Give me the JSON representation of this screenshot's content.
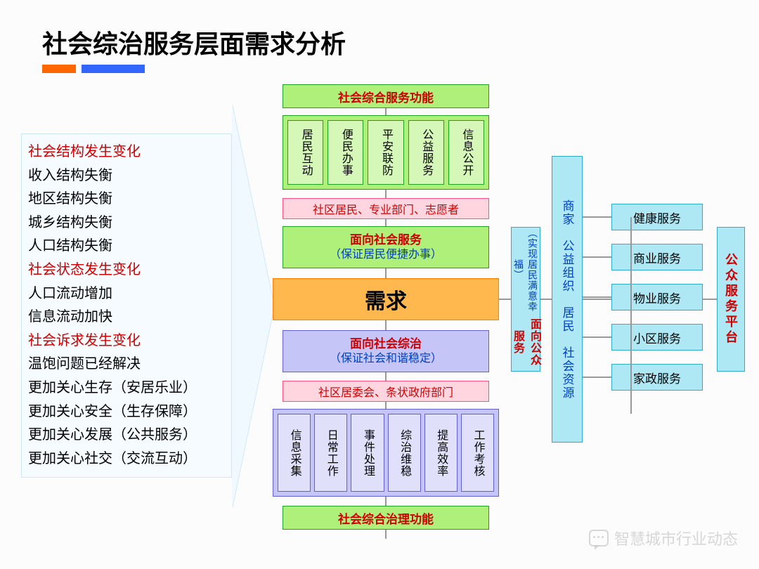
{
  "title": "社会综治服务层面需求分析",
  "left_list": [
    {
      "text": "社会结构发生变化",
      "cls": "red"
    },
    {
      "text": "收入结构失衡",
      "cls": "blk"
    },
    {
      "text": "地区结构失衡",
      "cls": "blk"
    },
    {
      "text": "城乡结构失衡",
      "cls": "blk"
    },
    {
      "text": "人口结构失衡",
      "cls": "blk"
    },
    {
      "text": "社会状态发生变化",
      "cls": "red"
    },
    {
      "text": "人口流动增加",
      "cls": "blk"
    },
    {
      "text": "信息流动加快",
      "cls": "blk"
    },
    {
      "text": "社会诉求发生变化",
      "cls": "red"
    },
    {
      "text": "温饱问题已经解决",
      "cls": "blk"
    },
    {
      "text": "更加关心生存（安居乐业）",
      "cls": "blk"
    },
    {
      "text": "更加关心安全（生存保障）",
      "cls": "blk"
    },
    {
      "text": "更加关心发展（公共服务）",
      "cls": "blk"
    },
    {
      "text": "更加关心社交（交流互动）",
      "cls": "blk"
    }
  ],
  "top_green_title": "社会综合服务功能",
  "top_green_items": [
    "居民互动",
    "便民办事",
    "平安联防",
    "公益服务",
    "信息公开"
  ],
  "top_pink": "社区居民、专业部门、志愿者",
  "mid_green_t": "面向社会服务",
  "mid_green_s": "（保证居民便捷办事）",
  "center": "需求",
  "mid_purple_t": "面向社会综治",
  "mid_purple_s": "（保证社会和谐稳定）",
  "bot_pink": "社区居委会、条状政府部门",
  "bot_purple_items": [
    "信息采集",
    "日常工作",
    "事件处理",
    "综治维稳",
    "提高效率",
    "工作考核"
  ],
  "bot_green_title": "社会综合治理功能",
  "cyan_narrow_t": "面向公众服务",
  "cyan_narrow_s": "（实现居民满意幸福）",
  "cyan_wide": "商家　公益组织　居民　社会资源",
  "right_list": [
    "健康服务",
    "商业服务",
    "物业服务",
    "小区服务",
    "家政服务"
  ],
  "rightmost": "公众服务平台",
  "watermark": "智慧城市行业动态",
  "colors": {
    "green_bg": "#aef07a",
    "green_bd": "#1fa01f",
    "orange_bg": "#ffb84d",
    "orange_bd": "#ff8000",
    "purple_bg": "#c5c5f7",
    "purple_bd": "#6060d0",
    "cyan_bg": "#aee8f5",
    "cyan_bd": "#30a8d0",
    "pink_bg": "#ffd6e0",
    "pink_bd": "#ff5080",
    "accent_orange": "#ff6600",
    "accent_blue": "#3366ff",
    "title_red": "#d00000"
  }
}
